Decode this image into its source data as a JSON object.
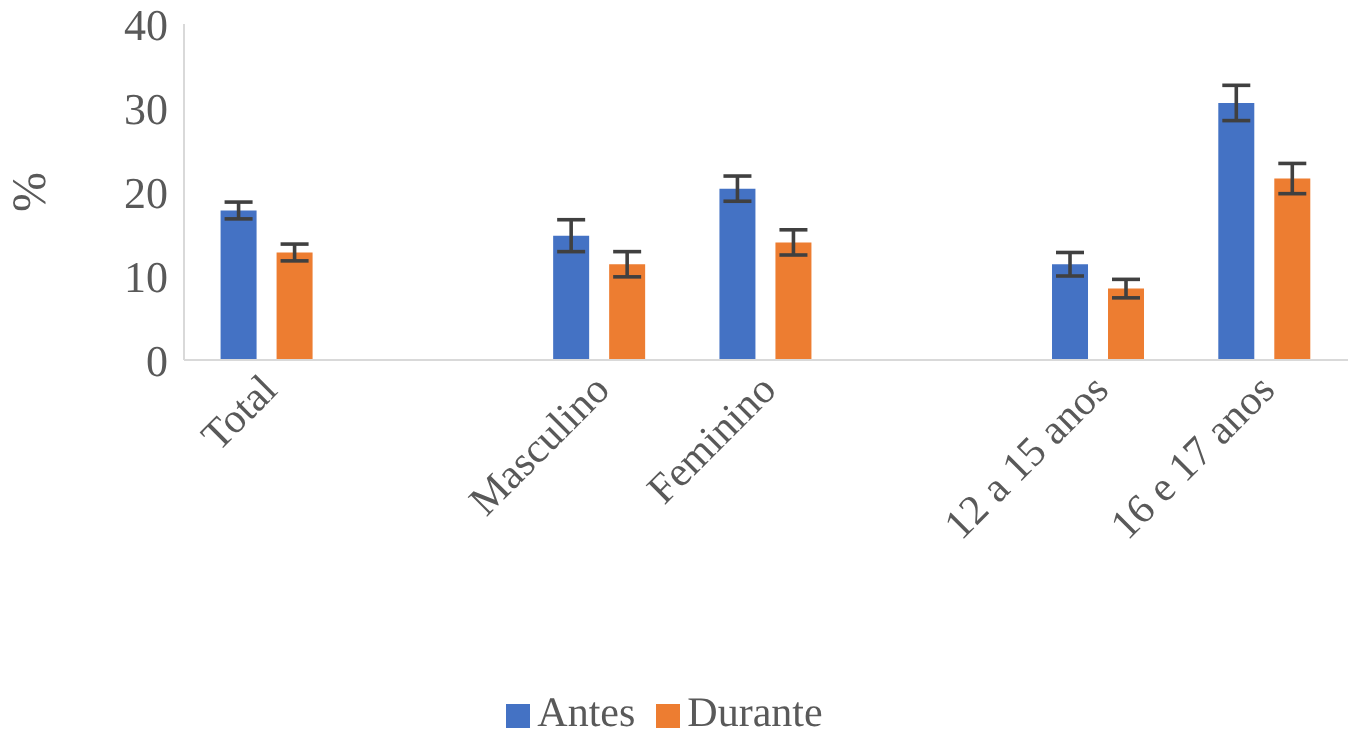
{
  "chart_data": {
    "type": "bar",
    "ylabel": "%",
    "categories": [
      "Total",
      null,
      "Masculino",
      "Feminino",
      null,
      "12 a 15 anos",
      "16 e 17 anos"
    ],
    "series": [
      {
        "name": "Antes",
        "color": "#4472c4",
        "values": [
          17.8,
          null,
          14.8,
          20.4,
          null,
          11.4,
          30.6
        ],
        "errors": [
          1.0,
          null,
          1.9,
          1.5,
          null,
          1.4,
          2.1
        ]
      },
      {
        "name": "Durante",
        "color": "#ed7d31",
        "values": [
          12.8,
          null,
          11.4,
          14.0,
          null,
          8.5,
          21.6
        ],
        "errors": [
          1.0,
          null,
          1.5,
          1.5,
          null,
          1.1,
          1.8
        ]
      }
    ],
    "ylim": [
      0,
      40
    ],
    "yticks": [
      0,
      10,
      20,
      30,
      40
    ],
    "legend": "bottom"
  }
}
